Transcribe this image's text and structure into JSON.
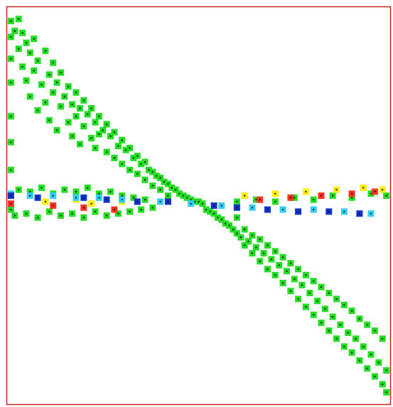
{
  "chart_data": {
    "type": "scatter",
    "title": "",
    "xlabel": "",
    "ylabel": "",
    "xlim": [
      0,
      1
    ],
    "ylim": [
      -1,
      1
    ],
    "grid": false,
    "legend": "none",
    "frame_color": "#cc2222",
    "marker": "square",
    "marker_center_color": "#111111",
    "series": [
      {
        "color": "#22dd22",
        "points": [
          [
            0.01,
            0.93
          ],
          [
            0.01,
            0.85
          ],
          [
            0.01,
            0.74
          ],
          [
            0.01,
            0.62
          ],
          [
            0.01,
            0.45
          ],
          [
            0.01,
            0.32
          ],
          [
            0.01,
            0.18
          ],
          [
            0.01,
            0.05
          ],
          [
            0.01,
            -0.02
          ],
          [
            0.02,
            0.88
          ],
          [
            0.03,
            0.94
          ],
          [
            0.03,
            0.79
          ],
          [
            0.04,
            0.87
          ],
          [
            0.04,
            0.7
          ],
          [
            0.05,
            0.82
          ],
          [
            0.05,
            0.63
          ],
          [
            0.06,
            0.77
          ],
          [
            0.06,
            0.55
          ],
          [
            0.07,
            0.84
          ],
          [
            0.07,
            0.68
          ],
          [
            0.08,
            0.73
          ],
          [
            0.08,
            0.48
          ],
          [
            0.09,
            0.61
          ],
          [
            0.1,
            0.78
          ],
          [
            0.1,
            0.52
          ],
          [
            0.11,
            0.66
          ],
          [
            0.11,
            0.43
          ],
          [
            0.12,
            0.72
          ],
          [
            0.12,
            0.57
          ],
          [
            0.13,
            0.62
          ],
          [
            0.13,
            0.38
          ],
          [
            0.14,
            0.67
          ],
          [
            0.14,
            0.5
          ],
          [
            0.15,
            0.55
          ],
          [
            0.16,
            0.6
          ],
          [
            0.16,
            0.42
          ],
          [
            0.17,
            0.51
          ],
          [
            0.17,
            0.35
          ],
          [
            0.18,
            0.57
          ],
          [
            0.18,
            0.45
          ],
          [
            0.19,
            0.49
          ],
          [
            0.19,
            0.31
          ],
          [
            0.2,
            0.53
          ],
          [
            0.2,
            0.4
          ],
          [
            0.21,
            0.46
          ],
          [
            0.22,
            0.49
          ],
          [
            0.22,
            0.34
          ],
          [
            0.23,
            0.42
          ],
          [
            0.23,
            0.29
          ],
          [
            0.24,
            0.45
          ],
          [
            0.24,
            0.36
          ],
          [
            0.25,
            0.38
          ],
          [
            0.26,
            0.41
          ],
          [
            0.26,
            0.27
          ],
          [
            0.27,
            0.35
          ],
          [
            0.28,
            0.37
          ],
          [
            0.28,
            0.24
          ],
          [
            0.29,
            0.3
          ],
          [
            0.3,
            0.33
          ],
          [
            0.3,
            0.21
          ],
          [
            0.31,
            0.28
          ],
          [
            0.32,
            0.29
          ],
          [
            0.32,
            0.18
          ],
          [
            0.33,
            0.24
          ],
          [
            0.34,
            0.25
          ],
          [
            0.34,
            0.16
          ],
          [
            0.35,
            0.21
          ],
          [
            0.36,
            0.22
          ],
          [
            0.36,
            0.13
          ],
          [
            0.37,
            0.18
          ],
          [
            0.38,
            0.17
          ],
          [
            0.38,
            0.1
          ],
          [
            0.39,
            0.15
          ],
          [
            0.4,
            0.14
          ],
          [
            0.4,
            0.08
          ],
          [
            0.41,
            0.12
          ],
          [
            0.42,
            0.11
          ],
          [
            0.42,
            0.05
          ],
          [
            0.43,
            0.09
          ],
          [
            0.44,
            0.08
          ],
          [
            0.45,
            0.06
          ],
          [
            0.46,
            0.05
          ],
          [
            0.47,
            0.04
          ],
          [
            0.48,
            0.03
          ],
          [
            0.49,
            0.02
          ],
          [
            0.5,
            0.02
          ],
          [
            0.51,
            0.01
          ],
          [
            0.52,
            -0.02
          ],
          [
            0.53,
            -0.03
          ],
          [
            0.54,
            -0.04
          ],
          [
            0.55,
            -0.06
          ],
          [
            0.56,
            -0.07
          ],
          [
            0.57,
            -0.09
          ],
          [
            0.58,
            -0.1
          ],
          [
            0.59,
            -0.12
          ],
          [
            0.6,
            -0.14
          ],
          [
            0.6,
            -0.06
          ],
          [
            0.61,
            -0.16
          ],
          [
            0.62,
            -0.12
          ],
          [
            0.62,
            -0.2
          ],
          [
            0.63,
            -0.18
          ],
          [
            0.64,
            -0.15
          ],
          [
            0.64,
            -0.24
          ],
          [
            0.65,
            -0.21
          ],
          [
            0.66,
            -0.17
          ],
          [
            0.66,
            -0.28
          ],
          [
            0.67,
            -0.24
          ],
          [
            0.68,
            -0.2
          ],
          [
            0.68,
            -0.32
          ],
          [
            0.69,
            -0.27
          ],
          [
            0.7,
            -0.23
          ],
          [
            0.7,
            -0.35
          ],
          [
            0.71,
            -0.3
          ],
          [
            0.72,
            -0.26
          ],
          [
            0.72,
            -0.39
          ],
          [
            0.73,
            -0.33
          ],
          [
            0.74,
            -0.29
          ],
          [
            0.74,
            -0.43
          ],
          [
            0.75,
            -0.37
          ],
          [
            0.76,
            -0.32
          ],
          [
            0.76,
            -0.47
          ],
          [
            0.77,
            -0.4
          ],
          [
            0.78,
            -0.35
          ],
          [
            0.78,
            -0.51
          ],
          [
            0.79,
            -0.44
          ],
          [
            0.8,
            -0.38
          ],
          [
            0.8,
            -0.55
          ],
          [
            0.81,
            -0.48
          ],
          [
            0.82,
            -0.41
          ],
          [
            0.82,
            -0.59
          ],
          [
            0.83,
            -0.52
          ],
          [
            0.84,
            -0.44
          ],
          [
            0.84,
            -0.63
          ],
          [
            0.85,
            -0.56
          ],
          [
            0.86,
            -0.47
          ],
          [
            0.86,
            -0.67
          ],
          [
            0.87,
            -0.6
          ],
          [
            0.88,
            -0.5
          ],
          [
            0.88,
            -0.71
          ],
          [
            0.89,
            -0.64
          ],
          [
            0.9,
            -0.53
          ],
          [
            0.9,
            -0.74
          ],
          [
            0.91,
            -0.67
          ],
          [
            0.92,
            -0.57
          ],
          [
            0.92,
            -0.78
          ],
          [
            0.93,
            -0.71
          ],
          [
            0.94,
            -0.6
          ],
          [
            0.94,
            -0.82
          ],
          [
            0.95,
            -0.75
          ],
          [
            0.96,
            -0.63
          ],
          [
            0.96,
            -0.86
          ],
          [
            0.97,
            -0.79
          ],
          [
            0.98,
            -0.67
          ],
          [
            0.98,
            -0.9
          ],
          [
            0.99,
            -0.83
          ],
          [
            0.99,
            -0.94
          ],
          [
            0.02,
            -0.05
          ],
          [
            0.05,
            -0.04
          ],
          [
            0.08,
            -0.06
          ],
          [
            0.11,
            -0.03
          ],
          [
            0.14,
            -0.05
          ],
          [
            0.17,
            -0.04
          ],
          [
            0.2,
            -0.06
          ],
          [
            0.23,
            -0.03
          ],
          [
            0.26,
            -0.05
          ],
          [
            0.29,
            -0.04
          ],
          [
            0.32,
            -0.03
          ],
          [
            0.35,
            -0.02
          ],
          [
            0.38,
            -0.01
          ],
          [
            0.03,
            0.08
          ],
          [
            0.06,
            0.07
          ],
          [
            0.09,
            0.09
          ],
          [
            0.12,
            0.06
          ],
          [
            0.15,
            0.08
          ],
          [
            0.18,
            0.07
          ],
          [
            0.21,
            0.09
          ],
          [
            0.24,
            0.06
          ],
          [
            0.27,
            0.07
          ],
          [
            0.3,
            0.05
          ],
          [
            0.33,
            0.04
          ],
          [
            0.36,
            0.03
          ],
          [
            0.6,
            0.02
          ],
          [
            0.65,
            0.03
          ],
          [
            0.7,
            0.02
          ],
          [
            0.75,
            0.04
          ],
          [
            0.8,
            0.03
          ],
          [
            0.85,
            0.05
          ],
          [
            0.9,
            0.04
          ],
          [
            0.95,
            0.06
          ],
          [
            0.99,
            0.05
          ]
        ]
      },
      {
        "color": "#ffee00",
        "points": [
          [
            0.1,
            0.02
          ],
          [
            0.18,
            0.03
          ],
          [
            0.22,
            0.01
          ],
          [
            0.3,
            0.02
          ],
          [
            0.62,
            0.05
          ],
          [
            0.7,
            0.06
          ],
          [
            0.78,
            0.07
          ],
          [
            0.86,
            0.08
          ],
          [
            0.93,
            0.09
          ],
          [
            0.98,
            0.08
          ]
        ]
      },
      {
        "color": "#ff3322",
        "points": [
          [
            0.01,
            0.01
          ],
          [
            0.12,
            0.0
          ],
          [
            0.2,
            -0.01
          ],
          [
            0.28,
            -0.02
          ],
          [
            0.66,
            0.03
          ],
          [
            0.74,
            0.04
          ],
          [
            0.82,
            0.05
          ],
          [
            0.9,
            0.06
          ],
          [
            0.96,
            0.07
          ]
        ]
      },
      {
        "color": "#33ccff",
        "points": [
          [
            0.01,
            0.06
          ],
          [
            0.06,
            0.05
          ],
          [
            0.12,
            0.05
          ],
          [
            0.18,
            0.04
          ],
          [
            0.24,
            0.04
          ],
          [
            0.3,
            0.03
          ],
          [
            0.4,
            0.02
          ],
          [
            0.48,
            0.01
          ],
          [
            0.56,
            0.0
          ],
          [
            0.64,
            -0.01
          ],
          [
            0.72,
            -0.02
          ],
          [
            0.8,
            -0.02
          ],
          [
            0.88,
            -0.03
          ],
          [
            0.95,
            -0.04
          ]
        ]
      },
      {
        "color": "#1133cc",
        "points": [
          [
            0.01,
            0.05
          ],
          [
            0.08,
            0.04
          ],
          [
            0.2,
            0.04
          ],
          [
            0.26,
            0.03
          ],
          [
            0.34,
            0.02
          ],
          [
            0.42,
            0.02
          ],
          [
            0.54,
            0.0
          ],
          [
            0.6,
            -0.01
          ],
          [
            0.68,
            -0.02
          ],
          [
            0.76,
            -0.03
          ],
          [
            0.84,
            -0.03
          ],
          [
            0.92,
            -0.04
          ]
        ]
      }
    ]
  }
}
